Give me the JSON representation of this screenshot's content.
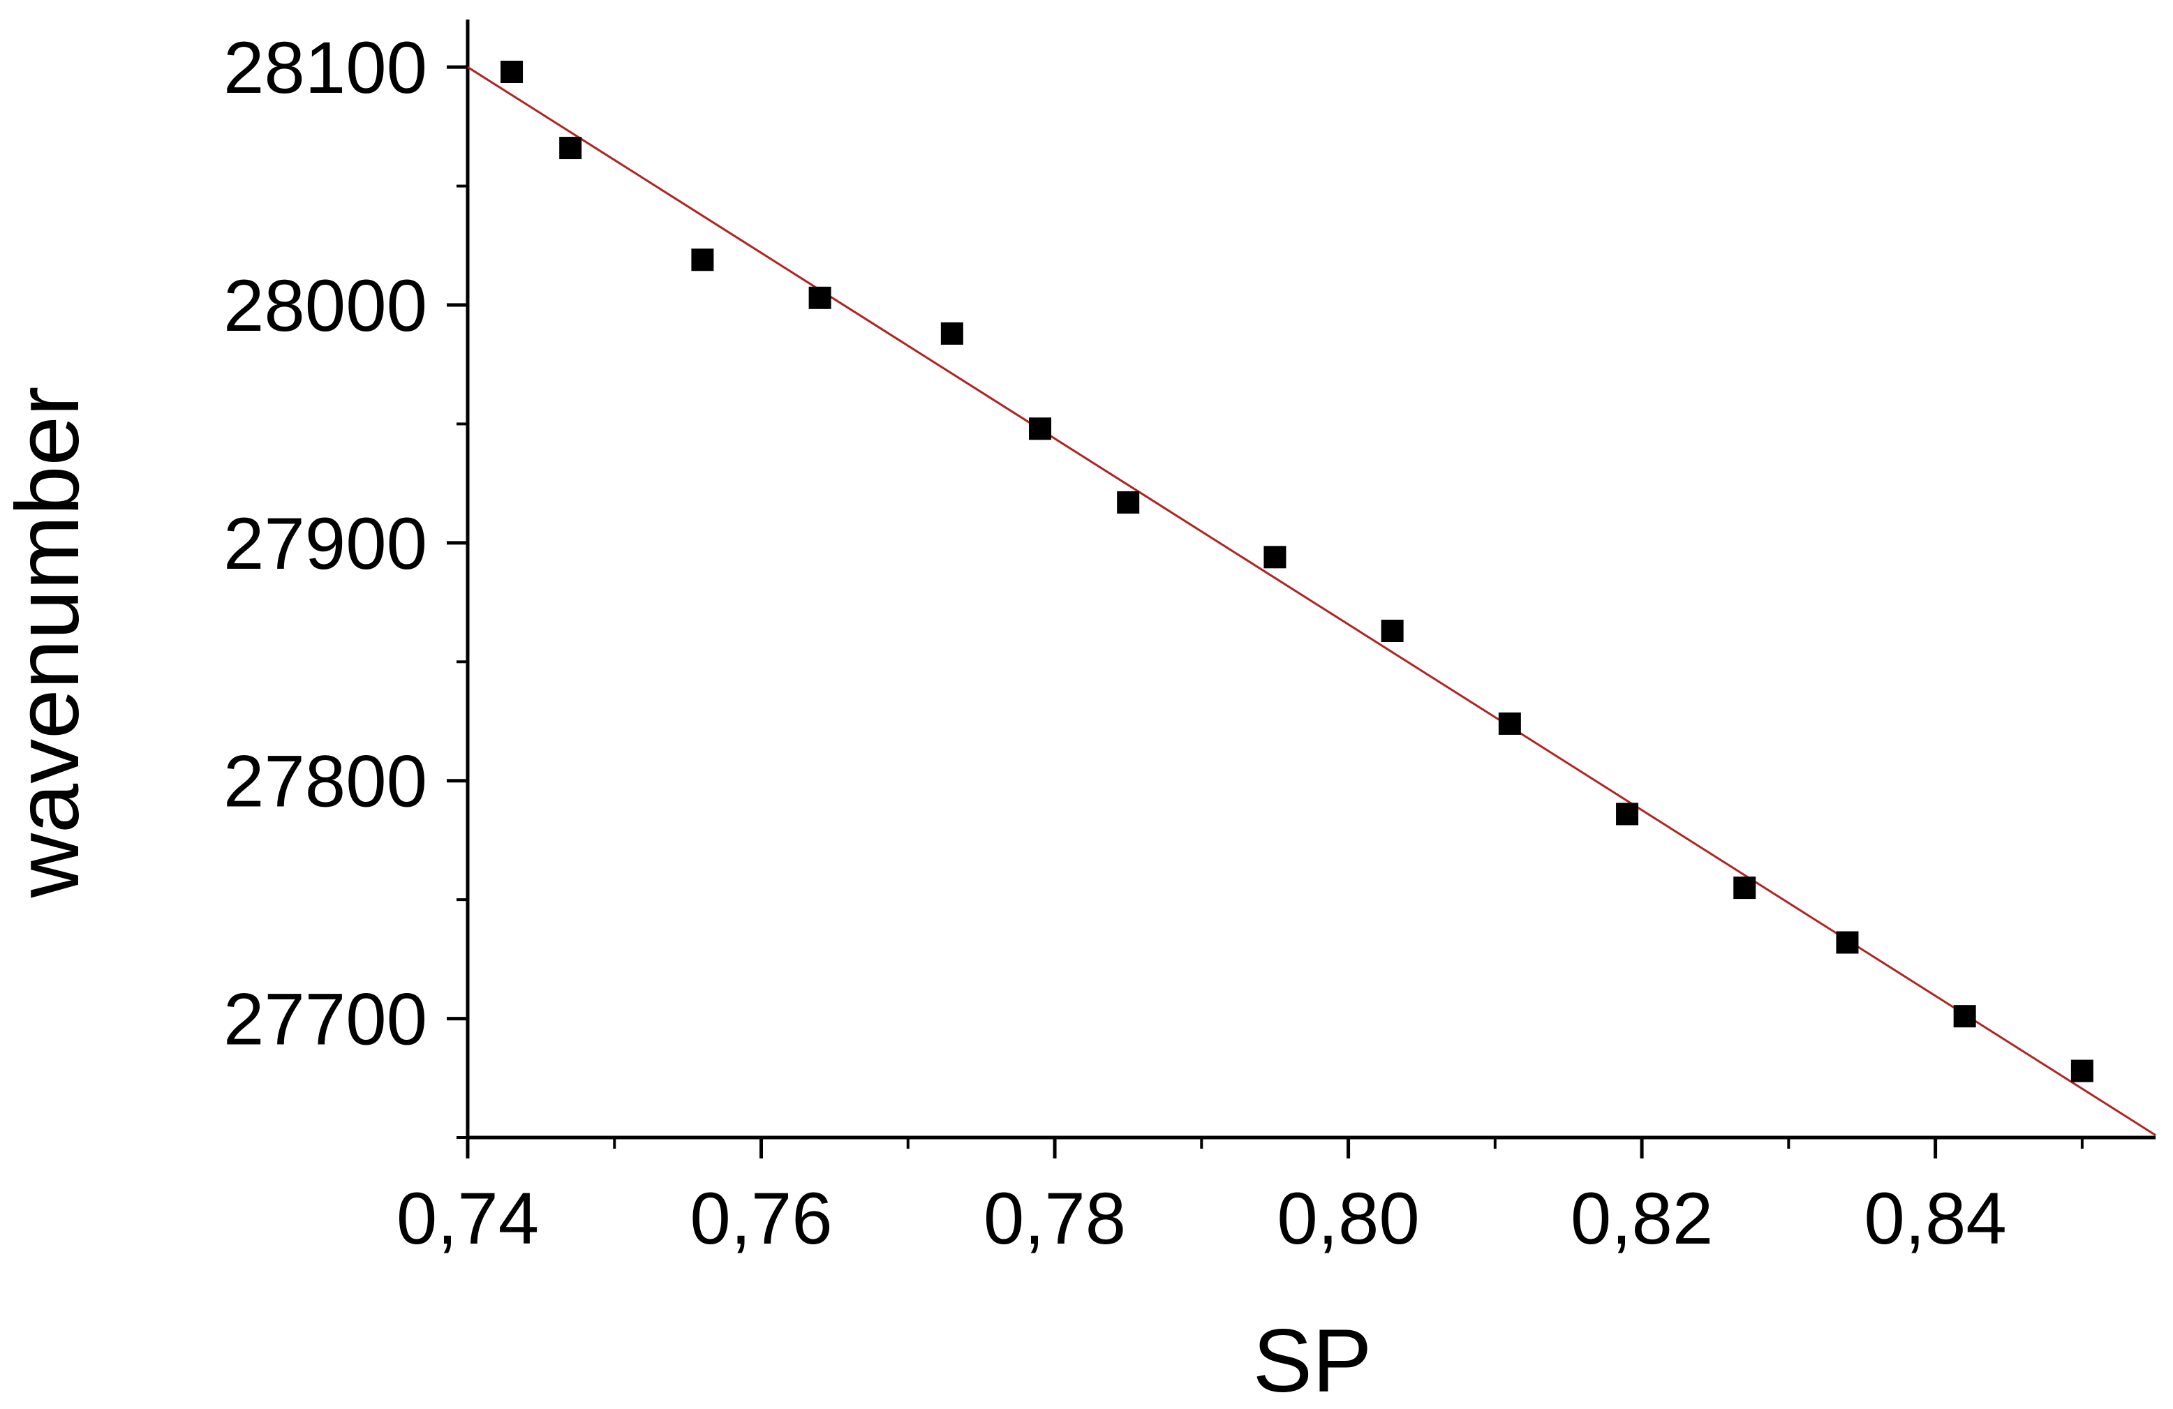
{
  "chart_data": {
    "type": "scatter",
    "xlabel": "SP",
    "ylabel": "wavenumber",
    "xlim": [
      0.74,
      0.855
    ],
    "ylim": [
      27650,
      28120
    ],
    "x_ticks": [
      {
        "value": 0.74,
        "label": "0,74"
      },
      {
        "value": 0.76,
        "label": "0,76"
      },
      {
        "value": 0.78,
        "label": "0,78"
      },
      {
        "value": 0.8,
        "label": "0,80"
      },
      {
        "value": 0.82,
        "label": "0,82"
      },
      {
        "value": 0.84,
        "label": "0,84"
      }
    ],
    "x_minor_ticks": [
      0.75,
      0.77,
      0.79,
      0.81,
      0.83,
      0.85
    ],
    "y_ticks": [
      {
        "value": 27700,
        "label": "27700"
      },
      {
        "value": 27800,
        "label": "27800"
      },
      {
        "value": 27900,
        "label": "27900"
      },
      {
        "value": 28000,
        "label": "28000"
      },
      {
        "value": 28100,
        "label": "28100"
      }
    ],
    "y_minor_ticks": [
      27650,
      27750,
      27850,
      27950,
      28050
    ],
    "grid": false,
    "series": [
      {
        "marker": "square",
        "color": "#000000",
        "points": [
          {
            "x": 0.743,
            "y": 28098
          },
          {
            "x": 0.747,
            "y": 28066
          },
          {
            "x": 0.756,
            "y": 28019
          },
          {
            "x": 0.764,
            "y": 28003
          },
          {
            "x": 0.773,
            "y": 27988
          },
          {
            "x": 0.779,
            "y": 27948
          },
          {
            "x": 0.785,
            "y": 27917
          },
          {
            "x": 0.795,
            "y": 27894
          },
          {
            "x": 0.803,
            "y": 27863
          },
          {
            "x": 0.811,
            "y": 27824
          },
          {
            "x": 0.819,
            "y": 27786
          },
          {
            "x": 0.827,
            "y": 27755
          },
          {
            "x": 0.834,
            "y": 27732
          },
          {
            "x": 0.842,
            "y": 27701
          },
          {
            "x": 0.85,
            "y": 27678
          }
        ]
      }
    ],
    "fit_line": {
      "color": "#b22222",
      "x": [
        0.74,
        0.855
      ],
      "y": [
        28100,
        27651
      ]
    }
  }
}
